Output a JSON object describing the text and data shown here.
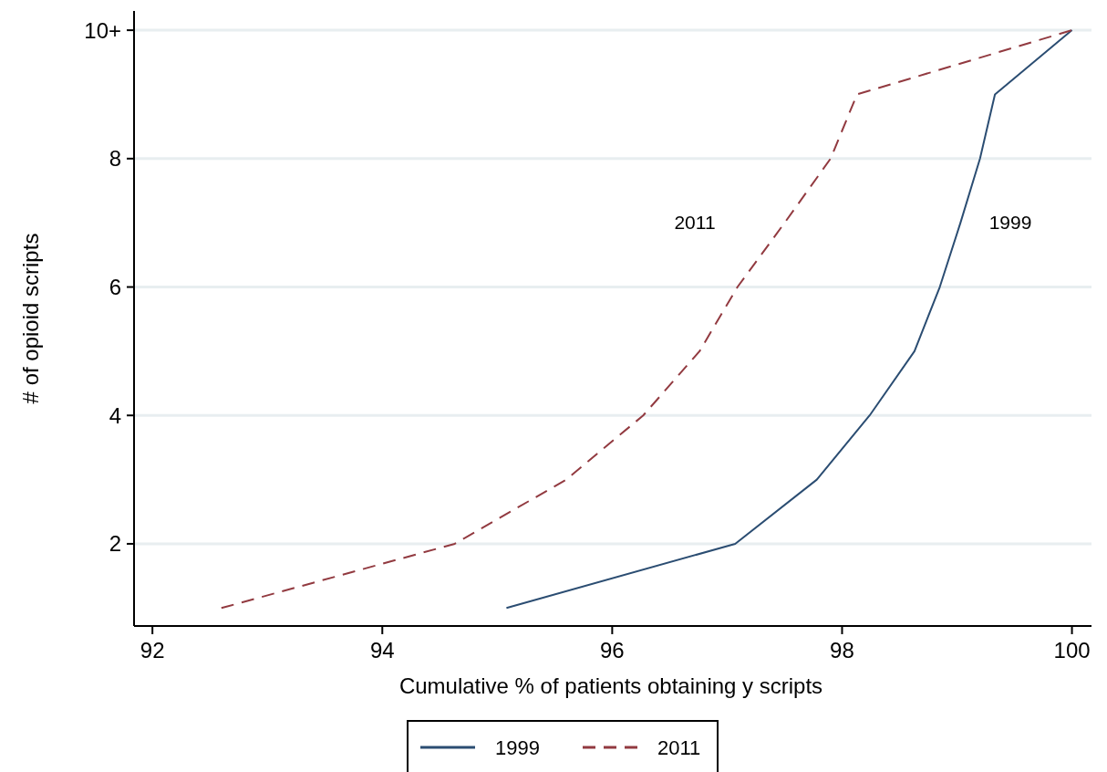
{
  "chart_data": {
    "type": "line",
    "xlabel": "Cumulative % of patients obtaining y scripts",
    "ylabel": "# of opioid scripts",
    "xlim": [
      91.84,
      100.17
    ],
    "xticks": [
      92,
      94,
      96,
      98,
      100
    ],
    "ylim": [
      0.72,
      10.3
    ],
    "yticks": [
      2,
      4,
      6,
      8,
      {
        "value": 10,
        "label": "10+"
      }
    ],
    "grid": "y",
    "legend": "bottom",
    "marker": "none",
    "series": [
      {
        "name": "1999",
        "color": "#2b4d72",
        "line_style": "solid",
        "x": [
          95.08,
          97.07,
          97.78,
          98.24,
          98.63,
          98.85,
          99.03,
          99.2,
          99.33,
          100
        ],
        "values": [
          1,
          2,
          3,
          4,
          5,
          6,
          7,
          8,
          9,
          10
        ]
      },
      {
        "name": "2011",
        "color": "#923a40",
        "line_style": "dashed",
        "x": [
          92.6,
          94.63,
          95.6,
          96.27,
          96.76,
          97.09,
          97.5,
          97.9,
          98.13,
          100
        ],
        "values": [
          1,
          2,
          3,
          4,
          5,
          6,
          7,
          8,
          9,
          10
        ]
      }
    ],
    "annotations": [
      "2011",
      "1999"
    ]
  }
}
